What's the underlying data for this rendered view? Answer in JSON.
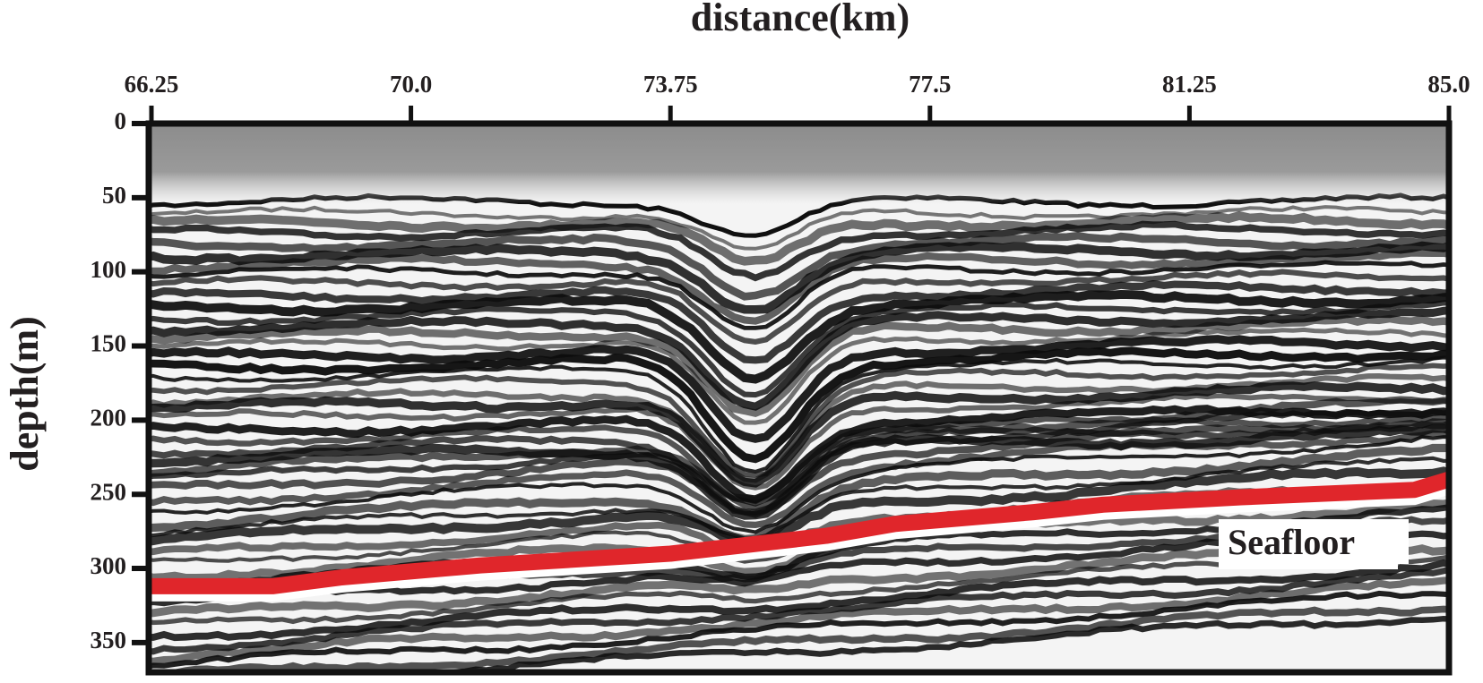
{
  "chart_data": {
    "type": "line",
    "x_label": "distance(km)",
    "y_label": "depth(m)",
    "annotation": "Seafloor",
    "xlim": [
      66.25,
      85.0
    ],
    "xticks": [
      66.25,
      {
        "value": 70,
        "label": "70.0"
      },
      73.75,
      77.5,
      81.25,
      {
        "value": 85,
        "label": "85.0"
      }
    ],
    "ylim": [
      370,
      0
    ],
    "yticks": [
      0,
      50,
      100,
      150,
      200,
      250,
      300,
      350
    ],
    "series": [
      {
        "name": "Seafloor",
        "color": "#e0262b",
        "x": [
          66.25,
          68.0,
          69.0,
          71.0,
          73.75,
          76.0,
          77.0,
          79.0,
          80.0,
          82.0,
          84.5,
          85.0
        ],
        "values": [
          312,
          312,
          306,
          298,
          290,
          278,
          270,
          262,
          257,
          252,
          247,
          240
        ]
      }
    ]
  }
}
